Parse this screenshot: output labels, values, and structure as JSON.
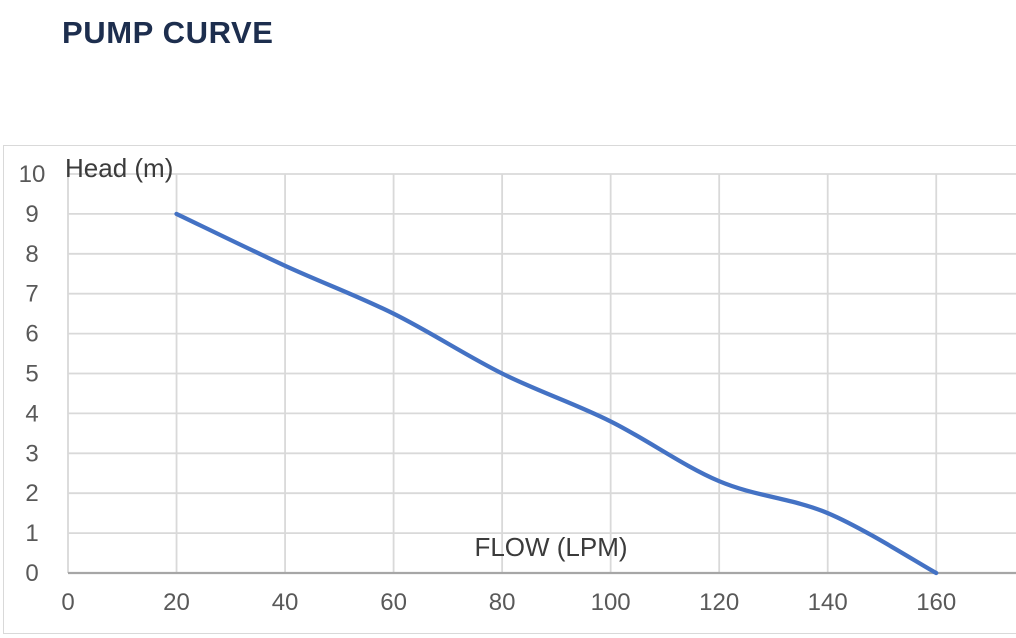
{
  "title": "PUMP CURVE",
  "chart_data": {
    "type": "line",
    "title": "PUMP CURVE",
    "xlabel": "FLOW (LPM)",
    "ylabel": "Head (m)",
    "x": [
      20,
      40,
      60,
      80,
      100,
      120,
      140,
      160
    ],
    "series": [
      {
        "name": "Head (m)",
        "values": [
          9.0,
          7.7,
          6.5,
          5.0,
          3.8,
          2.3,
          1.5,
          0.0
        ]
      }
    ],
    "x_ticks": [
      0,
      20,
      40,
      60,
      80,
      100,
      120,
      140,
      160
    ],
    "y_ticks": [
      0,
      1,
      2,
      3,
      4,
      5,
      6,
      7,
      8,
      9,
      10
    ],
    "xlim": [
      0,
      174.7
    ],
    "ylim": [
      0,
      10
    ],
    "grid": true,
    "smooth": true,
    "legend": "none"
  },
  "colors": {
    "title": "#1d2e4e",
    "curve": "#4472c4",
    "gridline": "#d9d9d9",
    "axis_line": "#a6a6a6",
    "tick_label": "#595959",
    "axis_title": "#3b3b3b",
    "card_border": "#d9d9d9",
    "background": "#ffffff"
  }
}
